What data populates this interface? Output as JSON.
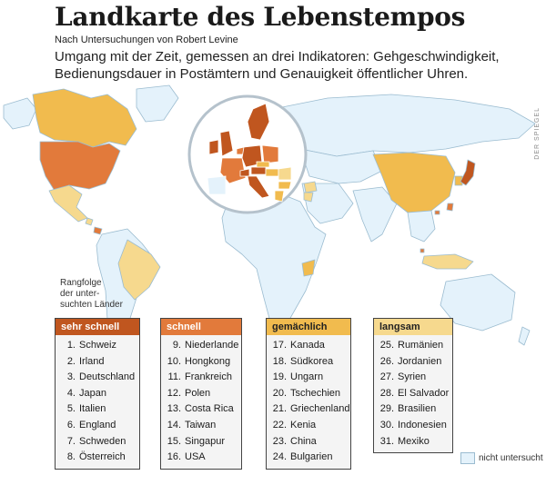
{
  "title": "Landkarte des Lebenstempos",
  "credit": "Nach Untersuchungen von Robert Levine",
  "subtitle": "Umgang mit der Zeit, gemessen an drei Indikatoren: Gehgeschwindigkeit, Bedienungsdauer in Postämtern und Genauigkeit öffentlicher Uhren.",
  "side_label": "DER SPIEGEL",
  "ranking_caption": [
    "Rangfolge",
    "der unter-",
    "suchten Länder"
  ],
  "colors": {
    "sehr_schnell": "#c0561f",
    "schnell": "#e27a3b",
    "gemaechlich": "#f1bb4e",
    "langsam": "#f6d98e",
    "nicht_untersucht": "#e4f2fb",
    "ocean": "#ffffff",
    "border": "#9bbcd0"
  },
  "groups": [
    {
      "id": "g1",
      "name": "sehr schnell",
      "countries": [
        {
          "rank": "1.",
          "name": "Schweiz"
        },
        {
          "rank": "2.",
          "name": "Irland"
        },
        {
          "rank": "3.",
          "name": "Deutschland"
        },
        {
          "rank": "4.",
          "name": "Japan"
        },
        {
          "rank": "5.",
          "name": "Italien"
        },
        {
          "rank": "6.",
          "name": "England"
        },
        {
          "rank": "7.",
          "name": "Schweden"
        },
        {
          "rank": "8.",
          "name": "Österreich"
        }
      ]
    },
    {
      "id": "g2",
      "name": "schnell",
      "countries": [
        {
          "rank": "9.",
          "name": "Niederlande"
        },
        {
          "rank": "10.",
          "name": "Hongkong"
        },
        {
          "rank": "11.",
          "name": "Frankreich"
        },
        {
          "rank": "12.",
          "name": "Polen"
        },
        {
          "rank": "13.",
          "name": "Costa Rica"
        },
        {
          "rank": "14.",
          "name": "Taiwan"
        },
        {
          "rank": "15.",
          "name": "Singapur"
        },
        {
          "rank": "16.",
          "name": "USA"
        }
      ]
    },
    {
      "id": "g3",
      "name": "gemächlich",
      "countries": [
        {
          "rank": "17.",
          "name": "Kanada"
        },
        {
          "rank": "18.",
          "name": "Südkorea"
        },
        {
          "rank": "19.",
          "name": "Ungarn"
        },
        {
          "rank": "20.",
          "name": "Tschechien"
        },
        {
          "rank": "21.",
          "name": "Griechenland"
        },
        {
          "rank": "22.",
          "name": "Kenia"
        },
        {
          "rank": "23.",
          "name": "China"
        },
        {
          "rank": "24.",
          "name": "Bulgarien"
        }
      ]
    },
    {
      "id": "g4",
      "name": "langsam",
      "countries": [
        {
          "rank": "25.",
          "name": "Rumänien"
        },
        {
          "rank": "26.",
          "name": "Jordanien"
        },
        {
          "rank": "27.",
          "name": "Syrien"
        },
        {
          "rank": "28.",
          "name": "El Salvador"
        },
        {
          "rank": "29.",
          "name": "Brasilien"
        },
        {
          "rank": "30.",
          "name": "Indonesien"
        },
        {
          "rank": "31.",
          "name": "Mexiko"
        }
      ]
    }
  ],
  "legend_not_studied": "nicht untersucht"
}
